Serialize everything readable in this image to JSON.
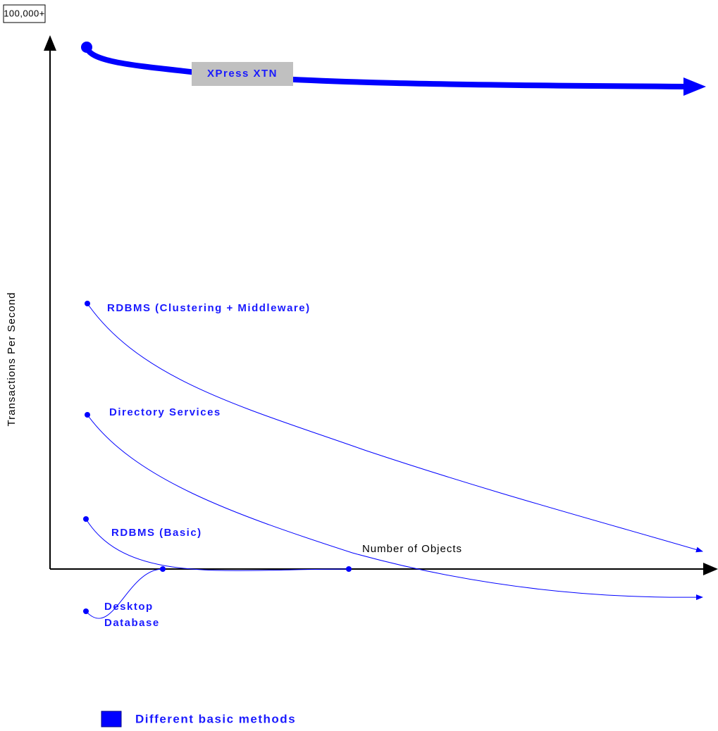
{
  "y_axis": {
    "top_label": "100,000+",
    "title": "Transactions Per Second"
  },
  "x_axis": {
    "title": "Number of Objects"
  },
  "curves": [
    {
      "label": "XPress XTN"
    },
    {
      "label": "RDBMS (Clustering + Middleware)"
    },
    {
      "label": "Directory Services"
    },
    {
      "label": "RDBMS (Basic)"
    },
    {
      "lines": [
        "Desktop",
        "Database"
      ]
    }
  ],
  "legend": {
    "label": "Different basic methods"
  }
}
